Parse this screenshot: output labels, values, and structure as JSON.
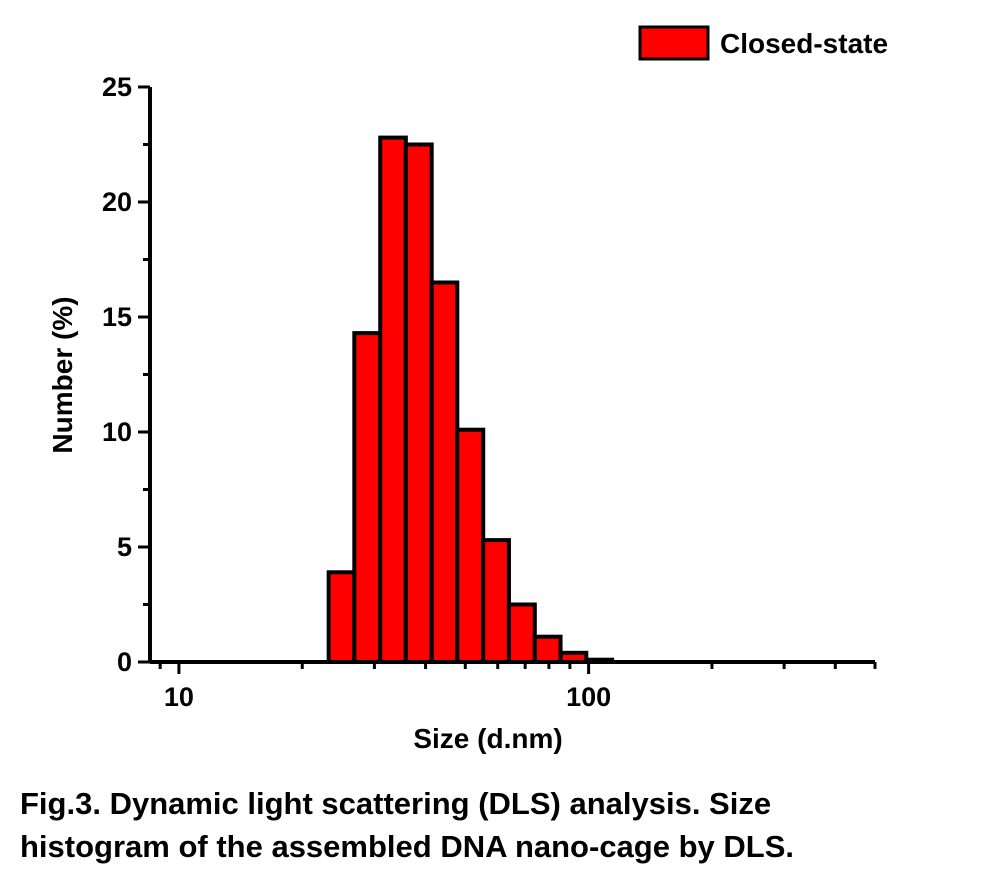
{
  "chart_data": {
    "type": "bar",
    "xscale": "log",
    "xlabel": "Size (d.nm)",
    "ylabel": "Number (%)",
    "xlim": [
      8.5,
      500
    ],
    "ylim": [
      0,
      25
    ],
    "xticks": [
      {
        "value": 10,
        "label": "10"
      },
      {
        "value": 100,
        "label": "100"
      }
    ],
    "yticks": [
      {
        "value": 0,
        "label": "0"
      },
      {
        "value": 5,
        "label": "5"
      },
      {
        "value": 10,
        "label": "10"
      },
      {
        "value": 15,
        "label": "15"
      },
      {
        "value": 20,
        "label": "20"
      },
      {
        "value": 25,
        "label": "25"
      }
    ],
    "legend_position": "top-right",
    "grid": false,
    "series": [
      {
        "name": "Closed-state",
        "color": "#ff0000",
        "bins": [
          {
            "x0": 23.2,
            "x1": 26.8,
            "value": 3.9
          },
          {
            "x0": 26.8,
            "x1": 31.0,
            "value": 14.3
          },
          {
            "x0": 31.0,
            "x1": 35.8,
            "value": 22.8
          },
          {
            "x0": 35.8,
            "x1": 41.4,
            "value": 22.5
          },
          {
            "x0": 41.4,
            "x1": 47.8,
            "value": 16.5
          },
          {
            "x0": 47.8,
            "x1": 55.3,
            "value": 10.1
          },
          {
            "x0": 55.3,
            "x1": 63.9,
            "value": 5.3
          },
          {
            "x0": 63.9,
            "x1": 73.9,
            "value": 2.5
          },
          {
            "x0": 73.9,
            "x1": 85.4,
            "value": 1.1
          },
          {
            "x0": 85.4,
            "x1": 98.7,
            "value": 0.4
          },
          {
            "x0": 98.7,
            "x1": 114.1,
            "value": 0.1
          }
        ]
      }
    ]
  },
  "caption": {
    "line1": "Fig.3. Dynamic light scattering (DLS) analysis. Size",
    "line2": "histogram of the assembled DNA nano-cage by DLS."
  }
}
